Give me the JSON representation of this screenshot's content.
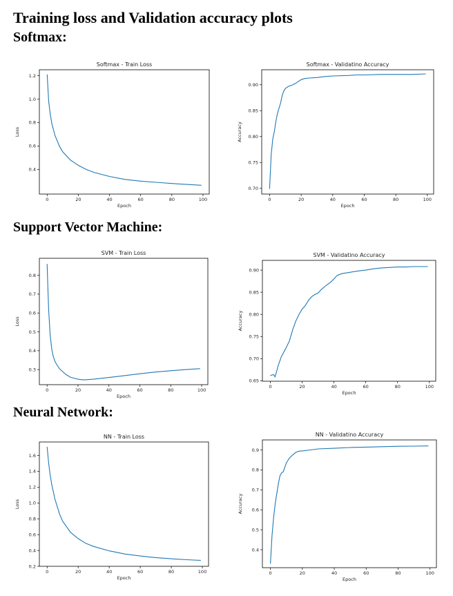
{
  "document": {
    "title": "Training loss and Validation accuracy plots",
    "sections": [
      {
        "heading": "Softmax:"
      },
      {
        "heading": "Support Vector Machine:"
      },
      {
        "heading": "Neural Network:"
      }
    ]
  },
  "chart_data": [
    {
      "type": "line",
      "title": "Softmax - Train Loss",
      "xlabel": "Epoch",
      "ylabel": "Loss",
      "xlim": [
        -5,
        104
      ],
      "ylim": [
        0.19,
        1.25
      ],
      "xticks": [
        0,
        20,
        40,
        60,
        80,
        100
      ],
      "yticks": [
        0.4,
        0.6,
        0.8,
        1.0,
        1.2
      ],
      "ytick_labels": [
        "0.4",
        "0.6",
        "0.8",
        "1.0",
        "1.2"
      ],
      "grid": false,
      "color": "#1f77b4",
      "series": [
        {
          "x": [
            0,
            1,
            2,
            3,
            5,
            8,
            10,
            15,
            20,
            25,
            30,
            40,
            50,
            60,
            70,
            80,
            90,
            99
          ],
          "y": [
            1.21,
            0.98,
            0.87,
            0.79,
            0.69,
            0.595,
            0.55,
            0.48,
            0.435,
            0.4,
            0.375,
            0.34,
            0.315,
            0.3,
            0.29,
            0.28,
            0.272,
            0.265
          ]
        }
      ]
    },
    {
      "type": "line",
      "title": "Softmax - Validatino Accuracy",
      "xlabel": "Epoch",
      "ylabel": "Accuracy",
      "xlim": [
        -5,
        104
      ],
      "ylim": [
        0.689,
        0.929
      ],
      "xticks": [
        0,
        20,
        40,
        60,
        80,
        100
      ],
      "yticks": [
        0.7,
        0.75,
        0.8,
        0.85,
        0.9
      ],
      "ytick_labels": [
        "0.70",
        "0.75",
        "0.80",
        "0.85",
        "0.90"
      ],
      "grid": false,
      "color": "#1f77b4",
      "series": [
        {
          "x": [
            0,
            1,
            2,
            3,
            4,
            5,
            6,
            7,
            8,
            9,
            10,
            12,
            14,
            16,
            18,
            20,
            22,
            25,
            30,
            35,
            40,
            50,
            55,
            60,
            70,
            80,
            90,
            99
          ],
          "y": [
            0.699,
            0.765,
            0.795,
            0.81,
            0.83,
            0.845,
            0.855,
            0.865,
            0.88,
            0.888,
            0.893,
            0.897,
            0.899,
            0.902,
            0.906,
            0.91,
            0.912,
            0.913,
            0.914,
            0.916,
            0.917,
            0.918,
            0.919,
            0.919,
            0.92,
            0.92,
            0.92,
            0.921
          ]
        }
      ]
    },
    {
      "type": "line",
      "title": "SVM - Train Loss",
      "xlabel": "Epoch",
      "ylabel": "Loss",
      "xlim": [
        -5,
        104
      ],
      "ylim": [
        0.22,
        0.89
      ],
      "xticks": [
        0,
        20,
        40,
        60,
        80,
        100
      ],
      "yticks": [
        0.3,
        0.4,
        0.5,
        0.6,
        0.7,
        0.8
      ],
      "ytick_labels": [
        "0.3",
        "0.4",
        "0.5",
        "0.6",
        "0.7",
        "0.8"
      ],
      "grid": false,
      "color": "#1f77b4",
      "series": [
        {
          "x": [
            0,
            1,
            2,
            3,
            4,
            5,
            6,
            8,
            10,
            12,
            15,
            18,
            20,
            23,
            25,
            30,
            40,
            50,
            60,
            70,
            80,
            90,
            99
          ],
          "y": [
            0.86,
            0.62,
            0.48,
            0.41,
            0.37,
            0.345,
            0.33,
            0.305,
            0.29,
            0.275,
            0.26,
            0.253,
            0.249,
            0.246,
            0.246,
            0.249,
            0.258,
            0.268,
            0.278,
            0.287,
            0.294,
            0.3,
            0.305
          ]
        }
      ]
    },
    {
      "type": "line",
      "title": "SVM - Validatino Accuracy",
      "xlabel": "Epoch",
      "ylabel": "Accuracy",
      "xlim": [
        -5,
        104
      ],
      "ylim": [
        0.649,
        0.922
      ],
      "xticks": [
        0,
        20,
        40,
        60,
        80,
        100
      ],
      "yticks": [
        0.65,
        0.7,
        0.75,
        0.8,
        0.85,
        0.9
      ],
      "ytick_labels": [
        "0.65",
        "0.70",
        "0.75",
        "0.80",
        "0.85",
        "0.90"
      ],
      "grid": false,
      "color": "#1f77b4",
      "series": [
        {
          "x": [
            0,
            2,
            3,
            5,
            7,
            10,
            12,
            14,
            16,
            18,
            20,
            22,
            24,
            26,
            28,
            30,
            32,
            35,
            38,
            40,
            42,
            45,
            50,
            55,
            60,
            65,
            70,
            75,
            80,
            85,
            90,
            95,
            99
          ],
          "y": [
            0.662,
            0.664,
            0.659,
            0.685,
            0.705,
            0.725,
            0.74,
            0.765,
            0.785,
            0.8,
            0.812,
            0.82,
            0.832,
            0.84,
            0.845,
            0.848,
            0.856,
            0.865,
            0.873,
            0.88,
            0.888,
            0.892,
            0.895,
            0.898,
            0.9,
            0.903,
            0.905,
            0.906,
            0.907,
            0.907,
            0.908,
            0.908,
            0.908
          ]
        }
      ]
    },
    {
      "type": "line",
      "title": "NN - Train Loss",
      "xlabel": "Epoch",
      "ylabel": "Loss",
      "xlim": [
        -5,
        104
      ],
      "ylim": [
        0.2,
        1.77
      ],
      "xticks": [
        0,
        20,
        40,
        60,
        80,
        100
      ],
      "yticks": [
        0.2,
        0.4,
        0.6,
        0.8,
        1.0,
        1.2,
        1.4,
        1.6
      ],
      "ytick_labels": [
        "0.2",
        "0.4",
        "0.6",
        "0.8",
        "1.0",
        "1.2",
        "1.4",
        "1.6"
      ],
      "grid": false,
      "color": "#1f77b4",
      "series": [
        {
          "x": [
            0,
            1,
            2,
            3,
            5,
            8,
            10,
            15,
            20,
            25,
            30,
            40,
            50,
            60,
            70,
            80,
            90,
            99
          ],
          "y": [
            1.71,
            1.5,
            1.35,
            1.23,
            1.05,
            0.86,
            0.77,
            0.63,
            0.55,
            0.49,
            0.45,
            0.395,
            0.355,
            0.33,
            0.31,
            0.295,
            0.283,
            0.275
          ]
        }
      ]
    },
    {
      "type": "line",
      "title": "NN - Validatino Accuracy",
      "xlabel": "Epoch",
      "ylabel": "Accuracy",
      "xlim": [
        -5,
        104
      ],
      "ylim": [
        0.31,
        0.95
      ],
      "xticks": [
        0,
        20,
        40,
        60,
        80,
        100
      ],
      "yticks": [
        0.4,
        0.5,
        0.6,
        0.7,
        0.8,
        0.9
      ],
      "ytick_labels": [
        "0.4",
        "0.5",
        "0.6",
        "0.7",
        "0.8",
        "0.9"
      ],
      "grid": false,
      "color": "#1f77b4",
      "series": [
        {
          "x": [
            0,
            1,
            2,
            3,
            4,
            5,
            6,
            7,
            8,
            10,
            12,
            14,
            16,
            18,
            20,
            25,
            30,
            40,
            50,
            60,
            70,
            80,
            90,
            99
          ],
          "y": [
            0.33,
            0.47,
            0.56,
            0.63,
            0.68,
            0.73,
            0.77,
            0.785,
            0.79,
            0.835,
            0.86,
            0.875,
            0.888,
            0.894,
            0.895,
            0.9,
            0.905,
            0.908,
            0.912,
            0.914,
            0.916,
            0.918,
            0.919,
            0.92
          ]
        }
      ]
    }
  ]
}
